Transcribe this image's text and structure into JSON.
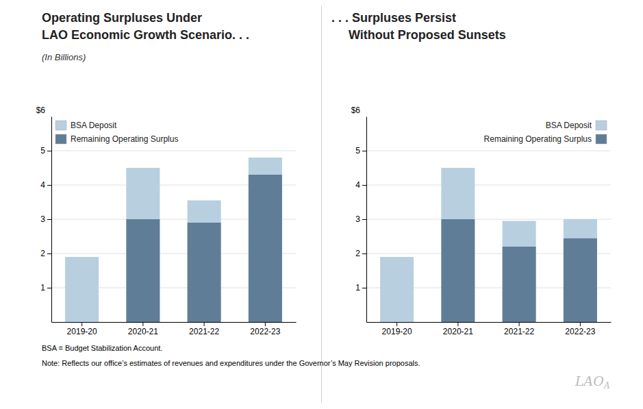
{
  "chart_data": [
    {
      "type": "bar",
      "stacked": true,
      "grid": true,
      "legend": "top-left",
      "title": [
        "Operating Surpluses Under",
        "LAO Economic Growth Scenario. . ."
      ],
      "subtitle": "(In Billions)",
      "ylabel": "$6",
      "categories": [
        "2019-20",
        "2020-21",
        "2021-22",
        "2022-23"
      ],
      "series": [
        {
          "name": "Remaining Operating Surplus",
          "color": "#607d97",
          "values": [
            0.0,
            3.0,
            2.9,
            4.3
          ]
        },
        {
          "name": "BSA Deposit",
          "color": "#b8cfe0",
          "values": [
            1.9,
            1.5,
            0.65,
            0.5
          ]
        }
      ],
      "ylim": [
        0,
        6
      ],
      "yticks": [
        1,
        2,
        3,
        4,
        5
      ],
      "annotations": [
        "BSA = Budget Stabilization Account.",
        "Note: Reflects our office’s estimates of revenues and expenditures under the Governor’s May Revision proposals."
      ]
    },
    {
      "type": "bar",
      "stacked": true,
      "grid": true,
      "legend": "top-right",
      "title": [
        ". . . Surpluses Persist",
        "     Without Proposed Sunsets"
      ],
      "ylabel": "$6",
      "categories": [
        "2019-20",
        "2020-21",
        "2021-22",
        "2022-23"
      ],
      "series": [
        {
          "name": "Remaining Operating Surplus",
          "color": "#607d97",
          "values": [
            0.0,
            3.0,
            2.2,
            2.45
          ]
        },
        {
          "name": "BSA Deposit",
          "color": "#b8cfe0",
          "values": [
            1.9,
            1.5,
            0.75,
            0.55
          ]
        }
      ],
      "ylim": [
        0,
        6
      ],
      "yticks": [
        1,
        2,
        3,
        4,
        5
      ],
      "annotations": [
        "LAO",
        "A"
      ]
    }
  ]
}
